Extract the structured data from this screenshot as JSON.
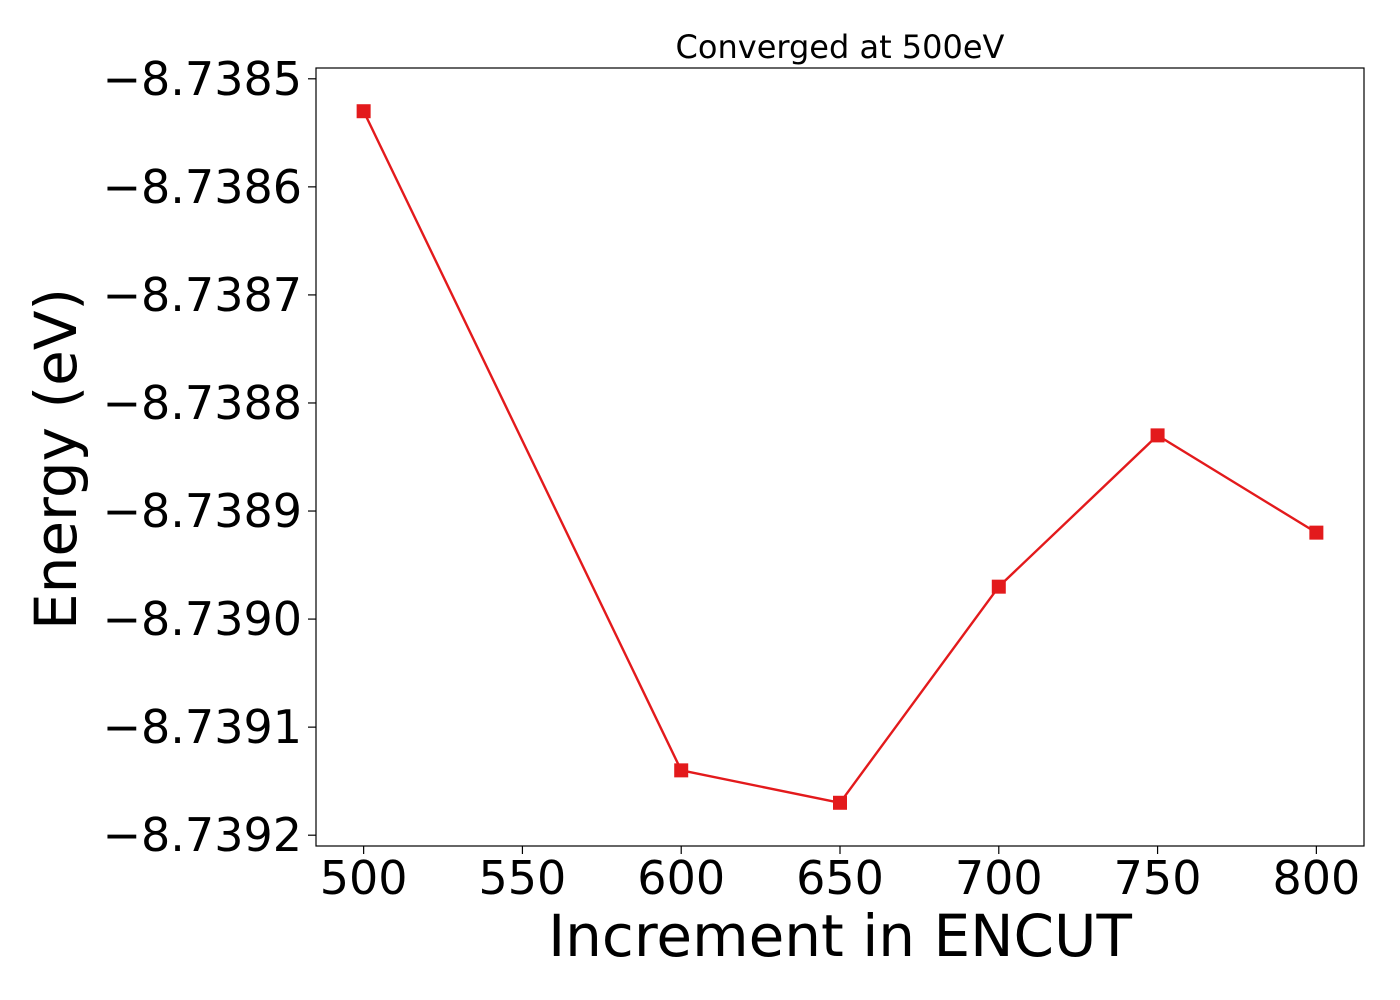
{
  "chart_data": {
    "type": "line",
    "title": "Converged at 500eV",
    "xlabel": "Increment in ENCUT",
    "ylabel": "Energy (eV)",
    "x": [
      500,
      600,
      650,
      700,
      750,
      800
    ],
    "series": [
      {
        "values": [
          -8.73853,
          -8.73914,
          -8.73917,
          -8.73897,
          -8.73883,
          -8.73892
        ],
        "color": "#e31a1c",
        "marker": "square"
      }
    ],
    "xlim": [
      485,
      815
    ],
    "ylim": [
      -8.73921,
      -8.73849
    ],
    "xticks": [
      500,
      550,
      600,
      650,
      700,
      750,
      800
    ],
    "xtick_labels": [
      "500",
      "550",
      "600",
      "650",
      "700",
      "750",
      "800"
    ],
    "yticks": [
      -8.7385,
      -8.7386,
      -8.7387,
      -8.7388,
      -8.7389,
      -8.739,
      -8.7391,
      -8.7392
    ],
    "ytick_labels": [
      "−8.7385",
      "−8.7386",
      "−8.7387",
      "−8.7388",
      "−8.7389",
      "−8.7390",
      "−8.7391",
      "−8.7392"
    ],
    "grid": false,
    "legend": "none"
  }
}
